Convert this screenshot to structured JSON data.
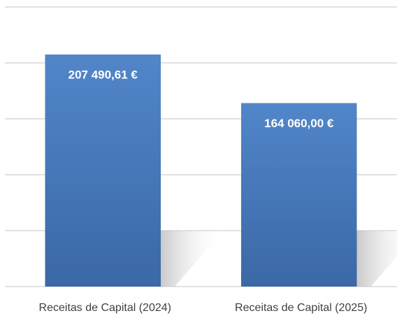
{
  "chart_data": {
    "type": "bar",
    "categories": [
      "Receitas de Capital (2024)",
      "Receitas de Capital (2025)"
    ],
    "values": [
      207490.61,
      164060.0
    ],
    "value_labels": [
      "207 490,61 €",
      "164 060,00 €"
    ],
    "color": "#4a7bbf",
    "ylim": [
      0,
      250000
    ],
    "yticks": [
      0,
      50000,
      100000,
      150000,
      200000,
      250000
    ],
    "grid": true
  }
}
